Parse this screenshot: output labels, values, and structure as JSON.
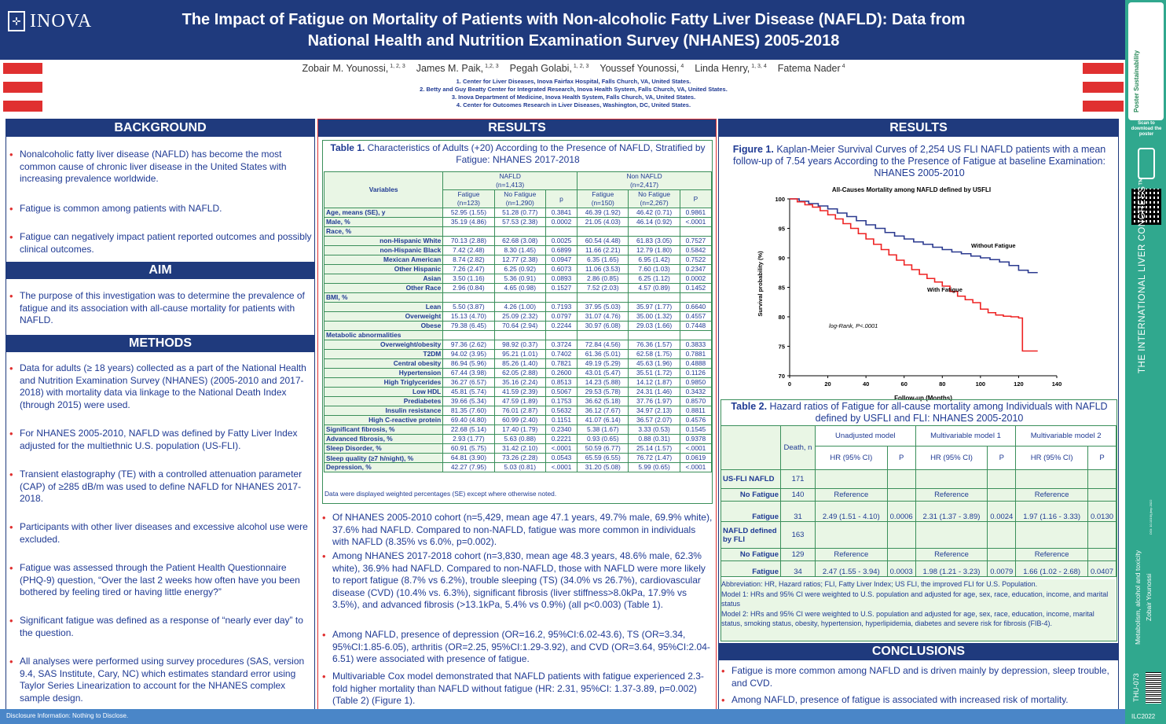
{
  "header": {
    "logo": "INOVA",
    "title_line1": "The Impact of Fatigue on Mortality of Patients with Non-alcoholic Fatty Liver Disease (NAFLD): Data from",
    "title_line2": "National Health and Nutrition Examination Survey (NHANES) 2005-2018"
  },
  "authors": [
    {
      "name": "Zobair M. Younossi,",
      "sup": "1, 2, 3"
    },
    {
      "name": "James M. Paik,",
      "sup": "1,2, 3"
    },
    {
      "name": "Pegah Golabi,",
      "sup": "1, 2, 3"
    },
    {
      "name": "Youssef Younossi,",
      "sup": "4"
    },
    {
      "name": "Linda Henry,",
      "sup": "1, 3, 4"
    },
    {
      "name": "Fatema Nader",
      "sup": "4"
    }
  ],
  "affiliations": [
    "1.   Center for Liver Diseases, Inova Fairfax Hospital, Falls Church, VA, United States.",
    "2.   Betty and Guy Beatty Center for Integrated Research, Inova Health System, Falls Church, VA, United States.",
    "3.   Inova Department of Medicine, Inova Health System, Falls Church, VA, United States.",
    "4.   Center for Outcomes Research in Liver Diseases, Washington, DC, United States."
  ],
  "background": {
    "heading": "BACKGROUND",
    "bullets": [
      "Nonalcoholic fatty liver disease (NAFLD) has become the most common cause of chronic liver disease in the United States with increasing prevalence worldwide.",
      "Fatigue is common among patients with NAFLD.",
      "Fatigue can negatively impact patient reported outcomes and possibly clinical outcomes."
    ]
  },
  "aim": {
    "heading": "AIM",
    "bullets": [
      "The purpose of this investigation was to determine the prevalence of fatigue and its association with all-cause mortality for patients with NAFLD."
    ]
  },
  "methods": {
    "heading": "METHODS",
    "bullets": [
      "Data for adults (≥ 18 years) collected as a part of the National Health and Nutrition Examination Survey (NHANES) (2005-2010 and 2017-2018) with mortality data via linkage to the National Death Index (through 2015) were used.",
      "For NHANES 2005-2010, NAFLD was defined by Fatty Liver Index adjusted for the multiethnic U.S. population (US-FLI).",
      "Transient elastography (TE) with a controlled attenuation parameter (CAP) of ≥285 dB/m was used to define NAFLD for NHANES 2017-2018.",
      "Participants with other liver diseases and excessive alcohol use were excluded.",
      "Fatigue was assessed through the Patient Health Questionnaire (PHQ-9) question, “Over the last 2 weeks how often have you been bothered by feeling tired or having little energy?”",
      "Significant fatigue was defined as a response of “nearly ever day” to the question.",
      "All analyses were performed using survey procedures (SAS, version 9.4, SAS Institute, Cary, NC) which estimates standard error using Taylor Series Linearization to account for the NHANES complex sample design."
    ]
  },
  "results1": {
    "heading": "RESULTS",
    "table1_caption_bold": "Table 1.",
    "table1_caption": " Characteristics of Adults (+20) According to the Presence of NAFLD, Stratified by Fatigue:  NHANES 2017-2018",
    "table1_head": {
      "variables": "Variables",
      "nafld": "NAFLD",
      "nafld_n": "(n=1,413)",
      "non": "Non NAFLD",
      "non_n": "(n=2,417)",
      "fat": "Fatigue",
      "fat_n1": "(n=123)",
      "nofat": "No Fatigue",
      "nofat_n1": "(n=1,290)",
      "p": "p",
      "fat2": "Fatigue",
      "fat_n2": "(n=150)",
      "nofat2": "No Fatigue",
      "nofat_n2": "(n=2,267)",
      "P": "P"
    },
    "table1_rows": [
      {
        "label": "Age, means (SE), y",
        "type": "bold",
        "cells": [
          "52.95 (1.55)",
          "51.28 (0.77)",
          "0.3841",
          "46.39 (1.92)",
          "46.42 (0.71)",
          "0.9861"
        ]
      },
      {
        "label": "Male, %",
        "type": "bold",
        "cells": [
          "35.19 (4.86)",
          "57.53 (2.38)",
          "0.0002",
          "21.05 (4.03)",
          "46.14 (0.92)",
          "<.0001"
        ]
      },
      {
        "label": "Race, %",
        "type": "bold",
        "cells": [
          "",
          "",
          "",
          "",
          "",
          ""
        ]
      },
      {
        "label": "non-Hispanic White",
        "type": "sub",
        "cells": [
          "70.13 (2.88)",
          "62.68 (3.08)",
          "0.0025",
          "60.54 (4.48)",
          "61.83 (3.05)",
          "0.7527"
        ]
      },
      {
        "label": "non-Hispanic Black",
        "type": "sub",
        "cells": [
          "7.42 (2.48)",
          "8.30 (1.45)",
          "0.6899",
          "11.66 (2.21)",
          "12.79 (1.80)",
          "0.5842"
        ]
      },
      {
        "label": "Mexican American",
        "type": "sub",
        "cells": [
          "8.74 (2.82)",
          "12.77 (2.38)",
          "0.0947",
          "6.35 (1.65)",
          "6.95 (1.42)",
          "0.7522"
        ]
      },
      {
        "label": "Other Hispanic",
        "type": "sub",
        "cells": [
          "7.26 (2.47)",
          "6.25 (0.92)",
          "0.6073",
          "11.06 (3.53)",
          "7.60 (1.03)",
          "0.2347"
        ]
      },
      {
        "label": "Asian",
        "type": "sub",
        "cells": [
          "3.50 (1.16)",
          "5.36 (0.91)",
          "0.0893",
          "2.86 (0.85)",
          "6.25 (1.12)",
          "0.0002"
        ]
      },
      {
        "label": "Other Race",
        "type": "sub",
        "cells": [
          "2.96 (0.84)",
          "4.65 (0.98)",
          "0.1527",
          "7.52 (2.03)",
          "4.57 (0.89)",
          "0.1452"
        ]
      },
      {
        "label": "BMI, %",
        "type": "bold",
        "cells": [
          "",
          "",
          "",
          "",
          "",
          ""
        ]
      },
      {
        "label": "Lean",
        "type": "sub",
        "cells": [
          "5.50 (3.87)",
          "4.26 (1.00)",
          "0.7193",
          "37.95 (5.03)",
          "35.97 (1.77)",
          "0.6640"
        ]
      },
      {
        "label": "Overweight",
        "type": "sub",
        "cells": [
          "15.13 (4.70)",
          "25.09 (2.32)",
          "0.0797",
          "31.07 (4.76)",
          "35.00 (1.32)",
          "0.4557"
        ]
      },
      {
        "label": "Obese",
        "type": "sub",
        "cells": [
          "79.38 (6.45)",
          "70.64 (2.94)",
          "0.2244",
          "30.97 (6.08)",
          "29.03 (1.66)",
          "0.7448"
        ]
      },
      {
        "label": "Metabolic abnormalities",
        "type": "bold",
        "cells": [
          "",
          "",
          "",
          "",
          "",
          ""
        ]
      },
      {
        "label": "Overweight/obesity",
        "type": "sub",
        "cells": [
          "97.36 (2.62)",
          "98.92 (0.37)",
          "0.3724",
          "72.84 (4.56)",
          "76.36 (1.57)",
          "0.3833"
        ]
      },
      {
        "label": "T2DM",
        "type": "sub",
        "cells": [
          "94.02 (3.95)",
          "95.21 (1.01)",
          "0.7402",
          "61.36 (5.01)",
          "62.58 (1.75)",
          "0.7881"
        ]
      },
      {
        "label": "Central obesity",
        "type": "sub",
        "cells": [
          "86.94 (5.96)",
          "85.26 (1.40)",
          "0.7821",
          "49.19 (5.29)",
          "45.63 (1.96)",
          "0.4888"
        ]
      },
      {
        "label": "Hypertension",
        "type": "sub",
        "cells": [
          "67.44 (3.98)",
          "62.05 (2.88)",
          "0.2600",
          "43.01 (5.47)",
          "35.51 (1.72)",
          "0.1126"
        ]
      },
      {
        "label": "High Triglycerides",
        "type": "sub",
        "cells": [
          "36.27 (6.57)",
          "35.16 (2.24)",
          "0.8513",
          "14.23 (5.88)",
          "14.12 (1.87)",
          "0.9850"
        ]
      },
      {
        "label": "Low HDL",
        "type": "sub",
        "cells": [
          "45.81 (5.74)",
          "41.59 (2.39)",
          "0.5067",
          "29.53 (5.78)",
          "24.31 (1.46)",
          "0.3432"
        ]
      },
      {
        "label": "Prediabetes",
        "type": "sub",
        "cells": [
          "39.66 (5.34)",
          "47.59 (1.89)",
          "0.1753",
          "36.62 (5.18)",
          "37.76 (1.97)",
          "0.8570"
        ]
      },
      {
        "label": "Insulin resistance",
        "type": "sub",
        "cells": [
          "81.35 (7.60)",
          "76.01 (2.87)",
          "0.5632",
          "36.12 (7.67)",
          "34.97 (2.13)",
          "0.8811"
        ]
      },
      {
        "label": "High C-reactive protein",
        "type": "sub",
        "cells": [
          "69.40 (4.80)",
          "60.99 (2.40)",
          "0.1151",
          "41.07 (6.14)",
          "36.57 (2.07)",
          "0.4576"
        ]
      },
      {
        "label": "Significant fibrosis, %",
        "type": "bold",
        "cells": [
          "22.68 (5.14)",
          "17.40 (1.79)",
          "0.2340",
          "5.38 (1.67)",
          "3.33 (0.53)",
          "0.1545"
        ]
      },
      {
        "label": "Advanced fibrosis, %",
        "type": "bold",
        "cells": [
          "2.93 (1.77)",
          "5.63 (0.88)",
          "0.2221",
          "0.93 (0.65)",
          "0.88 (0.31)",
          "0.9378"
        ]
      },
      {
        "label": "Sleep Disorder, %",
        "type": "bold",
        "cells": [
          "60.91 (5.75)",
          "31.42 (2.10)",
          "<.0001",
          "50.59 (6.77)",
          "25.14 (1.57)",
          "<.0001"
        ]
      },
      {
        "label": "Sleep quality (≥7 h/night), %",
        "type": "tall",
        "cells": [
          "64.81 (3.90)",
          "73.26 (2.28)",
          "0.0543",
          "65.59 (6.55)",
          "76.72 (1.47)",
          "0.0619"
        ]
      },
      {
        "label": "Depression, %",
        "type": "bold",
        "cells": [
          "42.27 (7.95)",
          "5.03 (0.81)",
          "<.0001",
          "31.20 (5.08)",
          "5.99 (0.65)",
          "<.0001"
        ]
      }
    ],
    "table1_note": "Data were displayed weighted percentages (SE) except where otherwise noted.",
    "bullets": [
      "Of NHANES 2005-2010 cohort (n=5,429, mean age 47.1 years, 49.7% male, 69.9% white), 37.6% had NAFLD. Compared to non-NAFLD, fatigue was more common in individuals with NAFLD (8.35% vs 6.0%, p=0.002).",
      "Among NHANES 2017-2018 cohort (n=3,830, mean age 48.3 years, 48.6% male, 62.3% white), 36.9% had NAFLD. Compared to non-NAFLD, those with NAFLD were more likely to report fatigue (8.7% vs 6.2%), trouble sleeping (TS) (34.0% vs 26.7%), cardiovascular disease (CVD) (10.4% vs. 6.3%), significant fibrosis (liver stiffness>8.0kPa, 17.9% vs 3.5%), and advanced fibrosis (>13.1kPa, 5.4% vs 0.9%) (all p<0.003) (Table 1).",
      "Among NAFLD, presence of depression (OR=16.2, 95%CI:6.02-43.6), TS (OR=3.34, 95%CI:1.85-6.05), arthritis (OR=2.25, 95%CI:1.29-3.92), and CVD (OR=3.64, 95%CI:2.04-6.51) were associated with presence of fatigue.",
      "Multivariable Cox model demonstrated that NAFLD patients with fatigue experienced 2.3-fold higher mortality than NAFLD without fatigue (HR: 2.31, 95%CI: 1.37-3.89, p=0.002) (Table 2) (Figure 1)."
    ]
  },
  "results2": {
    "heading": "RESULTS",
    "fig_bold": "Figure 1.",
    "fig_caption": "  Kaplan-Meier Survival Curves of 2,254 US FLI NAFLD patients with a mean follow-up of 7.54 years According to the Presence of Fatigue at baseline Examination: NHANES 2005-2010"
  },
  "chart_data": {
    "type": "line",
    "title": "All-Causes Mortality among NAFLD defined by USFLI",
    "xlabel": "Follow-up (Months)",
    "ylabel": "Survival probability (%)",
    "xlim": [
      0,
      140
    ],
    "ylim": [
      70,
      100
    ],
    "xticks": [
      0,
      20,
      40,
      60,
      80,
      100,
      120,
      140
    ],
    "yticks": [
      70,
      75,
      80,
      85,
      90,
      95,
      100
    ],
    "annotation": "log-Rank, P<.0001",
    "series": [
      {
        "name": "Without Fatigue",
        "color": "#2b3a8f",
        "x": [
          0,
          5,
          10,
          15,
          20,
          25,
          30,
          35,
          40,
          45,
          50,
          55,
          60,
          65,
          70,
          75,
          80,
          85,
          90,
          95,
          100,
          105,
          110,
          115,
          120,
          125,
          130
        ],
        "y": [
          100,
          99.6,
          99.2,
          98.8,
          98.3,
          97.6,
          97.0,
          96.3,
          95.6,
          95.0,
          94.3,
          93.7,
          93.2,
          92.7,
          92.3,
          91.8,
          91.4,
          91.0,
          90.7,
          90.3,
          90.0,
          89.7,
          89.3,
          88.7,
          87.9,
          87.5,
          87.5
        ]
      },
      {
        "name": "With Fatigue",
        "color": "#ee2222",
        "x": [
          0,
          4,
          8,
          12,
          16,
          20,
          24,
          28,
          32,
          36,
          40,
          44,
          48,
          52,
          56,
          60,
          64,
          68,
          72,
          76,
          80,
          84,
          88,
          92,
          96,
          100,
          104,
          108,
          112,
          116,
          120,
          122,
          125,
          130
        ],
        "y": [
          100,
          99.5,
          99.0,
          98.6,
          98.0,
          97.3,
          96.6,
          95.8,
          95.0,
          94.1,
          93.2,
          92.3,
          91.4,
          90.5,
          89.6,
          88.8,
          88.0,
          87.2,
          86.5,
          85.9,
          85.2,
          84.3,
          83.5,
          82.9,
          82.4,
          81.3,
          80.7,
          80.3,
          80.1,
          80.0,
          79.8,
          74.2,
          74.2,
          74.2
        ]
      }
    ]
  },
  "table2": {
    "caption_bold": "Table 2.",
    "caption": " Hazard ratios of Fatigue for all-cause mortality among Individuals with NAFLD defined by USFLI and FLI: NHANES 2005-2010",
    "death": "Death, n",
    "m0": "Unadjusted model",
    "m1": "Multivariable model 1",
    "m2": "Multivariable model 2",
    "hr": "HR (95% CI)",
    "p": "P",
    "rows": [
      {
        "label": "US-FLI NAFLD",
        "death": "171",
        "cells": [
          "",
          "",
          "",
          "",
          "",
          ""
        ],
        "type": "group"
      },
      {
        "label": "No Fatigue",
        "death": "140",
        "cells": [
          "Reference",
          "",
          "Reference",
          "",
          "Reference",
          ""
        ],
        "type": "ref"
      },
      {
        "label": "Fatigue",
        "death": "31",
        "cells": [
          "2.49 (1.51 - 4.10)",
          "0.0006",
          "2.31 (1.37 - 3.89)",
          "0.0024",
          "1.97 (1.16 - 3.33)",
          "0.0130"
        ],
        "type": "val"
      },
      {
        "label": "NAFLD defined by FLI",
        "death": "163",
        "cells": [
          "",
          "",
          "",
          "",
          "",
          ""
        ],
        "type": "group"
      },
      {
        "label": "No Fatigue",
        "death": "129",
        "cells": [
          "Reference",
          "",
          "Reference",
          "",
          "Reference",
          ""
        ],
        "type": "ref"
      },
      {
        "label": "Fatigue",
        "death": "34",
        "cells": [
          "2.47 (1.55 - 3.94)",
          "0.0003",
          "1.98 (1.21 - 3.23)",
          "0.0079",
          "1.66 (1.02 - 2.68)",
          "0.0407"
        ],
        "type": "val"
      }
    ],
    "notes": [
      "Abbreviation: HR, Hazard ratios; FLI, Fatty Liver Index; US FLI, the improved FLI for U.S. Population.",
      "Model 1: HRs and 95% CI were weighted to U.S. population and adjusted for age, sex, race, education, income, and marital status",
      "Model 2: HRs and 95% CI were weighted to U.S. population and adjusted for age, sex, race, education, income, marital status, smoking status, obesity, hypertension, hyperlipidemia, diabetes and severe risk for fibrosis (FIB-4)."
    ]
  },
  "conclusions": {
    "heading": "CONCLUSIONS",
    "bullets": [
      "Fatigue is more common among NAFLD and is driven mainly by depression, sleep trouble, and CVD.",
      "Among NAFLD, presence of fatigue is associated with increased risk of mortality."
    ]
  },
  "footer": {
    "disclosure": "Disclosure Information: Nothing to Disclose."
  },
  "sidebar": {
    "scan": "Scan to download the poster",
    "congress": "THE INTERNATIONAL LIVER CONGRESS™",
    "track": "Metabolism, alcohol and toxicity",
    "author": "Zobair Younossi",
    "code": "THU-073",
    "event": "ILC2022",
    "brand": "Poster Sustainability",
    "doi": "DOI: 10.1016/j.jhep.2022"
  },
  "colors": {
    "navy": "#1f3a7d",
    "red": "#e03030",
    "teal": "#30a88e",
    "green_row": "#e9f6e5"
  }
}
